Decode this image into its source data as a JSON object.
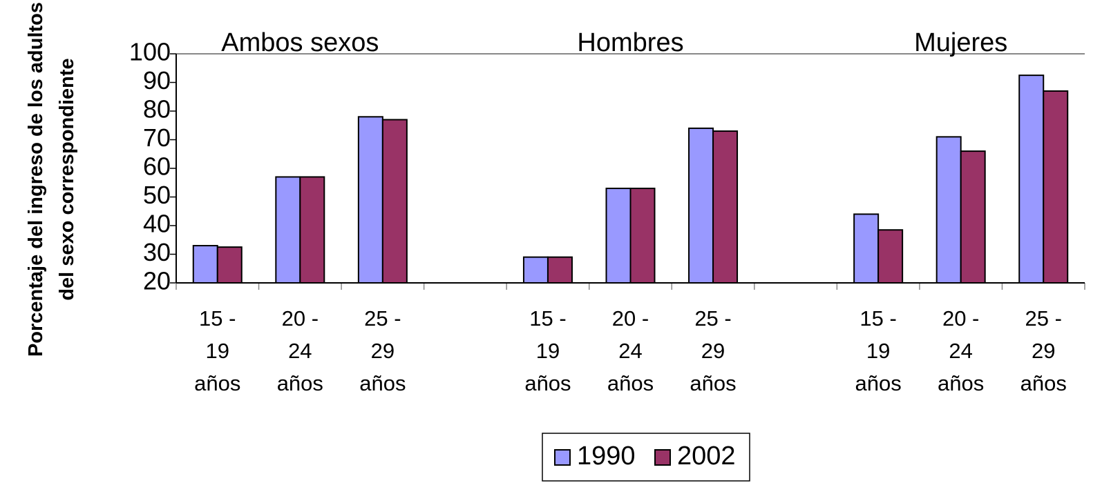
{
  "chart_data": {
    "type": "bar",
    "annotations": [
      "Ambos sexos",
      "Hombres",
      "Mujeres"
    ],
    "y_label": "Porcentaje del ingreso de los adultos del sexo correspondiente",
    "categories": [
      "15 - 19 años",
      "20 - 24 años",
      "25 - 29 años",
      null,
      "15 - 19 años",
      "20 - 24 años",
      "25 - 29 años",
      null,
      "15 - 19 años",
      "20 - 24 años",
      "25 - 29 años"
    ],
    "series": [
      {
        "name": "1990",
        "color": "#9999ff",
        "values": [
          33,
          57,
          78,
          null,
          29,
          53,
          74,
          null,
          44,
          71,
          92.5
        ]
      },
      {
        "name": "2002",
        "color": "#993366",
        "values": [
          32.5,
          57,
          77,
          null,
          29,
          53,
          73,
          null,
          38.5,
          66,
          87
        ]
      }
    ],
    "ylim": [
      20,
      100
    ],
    "yticks": [
      20,
      30,
      40,
      50,
      60,
      70,
      80,
      90,
      100
    ],
    "legend": "bottom"
  }
}
